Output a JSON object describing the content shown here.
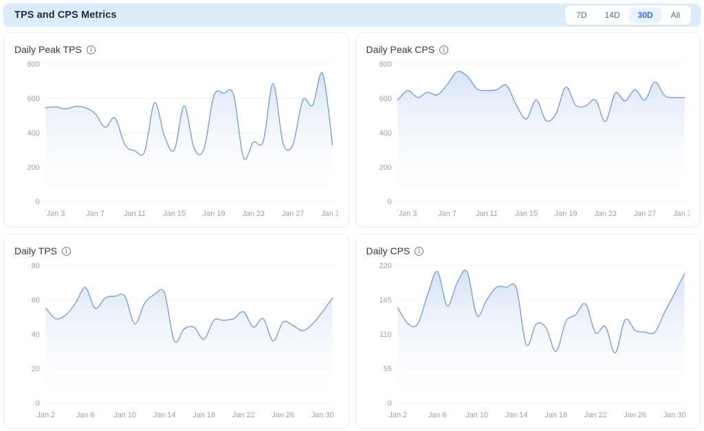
{
  "header": {
    "title": "TPS and CPS Metrics",
    "range_options": [
      {
        "label": "7D",
        "active": false
      },
      {
        "label": "14D",
        "active": false
      },
      {
        "label": "30D",
        "active": true
      },
      {
        "label": "All",
        "active": false
      }
    ]
  },
  "colors": {
    "header_bg": "#ddecfa",
    "accent_blue": "#2e6fdf",
    "line": "#7fa5da",
    "fill_top": "#cfdff4",
    "grid_line": "#f0f2f5",
    "axis_text": "#9aa1ab",
    "title_text": "#30394a"
  },
  "chart_data": [
    {
      "type": "area",
      "title": "Daily Peak TPS",
      "xlabel": "",
      "ylabel": "",
      "legend": "none",
      "grid": true,
      "ylim": [
        0,
        800
      ],
      "y_ticks": [
        0,
        200,
        400,
        600,
        800
      ],
      "x_tick_start": 1,
      "x_tick_every": 4,
      "categories": [
        "Jan 2",
        "Jan 3",
        "Jan 4",
        "Jan 5",
        "Jan 6",
        "Jan 7",
        "Jan 8",
        "Jan 9",
        "Jan 10",
        "Jan 11",
        "Jan 12",
        "Jan 13",
        "Jan 14",
        "Jan 15",
        "Jan 16",
        "Jan 17",
        "Jan 18",
        "Jan 19",
        "Jan 20",
        "Jan 21",
        "Jan 22",
        "Jan 23",
        "Jan 24",
        "Jan 25",
        "Jan 26",
        "Jan 27",
        "Jan 28",
        "Jan 29",
        "Jan 30",
        "Jan 31"
      ],
      "values": [
        545,
        550,
        538,
        552,
        545,
        510,
        432,
        485,
        330,
        295,
        290,
        575,
        380,
        300,
        555,
        310,
        305,
        615,
        630,
        620,
        255,
        345,
        350,
        685,
        340,
        330,
        590,
        560,
        745,
        330
      ]
    },
    {
      "type": "area",
      "title": "Daily Peak CPS",
      "xlabel": "",
      "ylabel": "",
      "legend": "none",
      "grid": true,
      "ylim": [
        0,
        800
      ],
      "y_ticks": [
        0,
        200,
        400,
        600,
        800
      ],
      "x_tick_start": 1,
      "x_tick_every": 4,
      "categories": [
        "Jan 2",
        "Jan 3",
        "Jan 4",
        "Jan 5",
        "Jan 6",
        "Jan 7",
        "Jan 8",
        "Jan 9",
        "Jan 10",
        "Jan 11",
        "Jan 12",
        "Jan 13",
        "Jan 14",
        "Jan 15",
        "Jan 16",
        "Jan 17",
        "Jan 18",
        "Jan 19",
        "Jan 20",
        "Jan 21",
        "Jan 22",
        "Jan 23",
        "Jan 24",
        "Jan 25",
        "Jan 26",
        "Jan 27",
        "Jan 28",
        "Jan 29",
        "Jan 30",
        "Jan 31"
      ],
      "values": [
        590,
        645,
        605,
        635,
        620,
        680,
        755,
        730,
        655,
        645,
        650,
        675,
        560,
        480,
        590,
        470,
        510,
        665,
        560,
        555,
        590,
        465,
        630,
        585,
        650,
        590,
        695,
        615,
        605,
        605
      ]
    },
    {
      "type": "area",
      "title": "Daily TPS",
      "xlabel": "",
      "ylabel": "",
      "legend": "none",
      "grid": true,
      "ylim": [
        0,
        80
      ],
      "y_ticks": [
        0,
        20,
        40,
        60,
        80
      ],
      "x_tick_start": 0,
      "x_tick_every": 4,
      "categories": [
        "Jan 2",
        "Jan 3",
        "Jan 4",
        "Jan 5",
        "Jan 6",
        "Jan 7",
        "Jan 8",
        "Jan 9",
        "Jan 10",
        "Jan 11",
        "Jan 12",
        "Jan 13",
        "Jan 14",
        "Jan 15",
        "Jan 16",
        "Jan 17",
        "Jan 18",
        "Jan 19",
        "Jan 20",
        "Jan 21",
        "Jan 22",
        "Jan 23",
        "Jan 24",
        "Jan 25",
        "Jan 26",
        "Jan 27",
        "Jan 28",
        "Jan 29",
        "Jan 30",
        "Jan 31"
      ],
      "values": [
        55,
        49,
        51,
        58,
        67,
        55,
        61,
        62,
        62,
        46,
        58,
        63,
        64,
        36,
        43,
        44,
        37,
        48,
        48,
        49,
        53,
        44,
        49,
        36,
        47,
        45,
        42,
        46,
        53,
        61
      ]
    },
    {
      "type": "area",
      "title": "Daily CPS",
      "xlabel": "",
      "ylabel": "",
      "legend": "none",
      "grid": true,
      "ylim": [
        0,
        220
      ],
      "y_ticks": [
        0,
        55,
        110,
        165,
        220
      ],
      "x_tick_start": 0,
      "x_tick_every": 4,
      "categories": [
        "Jan 2",
        "Jan 3",
        "Jan 4",
        "Jan 5",
        "Jan 6",
        "Jan 7",
        "Jan 8",
        "Jan 9",
        "Jan 10",
        "Jan 11",
        "Jan 12",
        "Jan 13",
        "Jan 14",
        "Jan 15",
        "Jan 16",
        "Jan 17",
        "Jan 18",
        "Jan 19",
        "Jan 20",
        "Jan 21",
        "Jan 22",
        "Jan 23",
        "Jan 24",
        "Jan 25",
        "Jan 26",
        "Jan 27",
        "Jan 28",
        "Jan 29",
        "Jan 30",
        "Jan 31"
      ],
      "values": [
        152,
        127,
        126,
        172,
        210,
        155,
        192,
        210,
        140,
        165,
        185,
        185,
        183,
        93,
        126,
        120,
        82,
        130,
        141,
        158,
        112,
        122,
        80,
        133,
        116,
        113,
        113,
        145,
        175,
        207
      ]
    }
  ]
}
